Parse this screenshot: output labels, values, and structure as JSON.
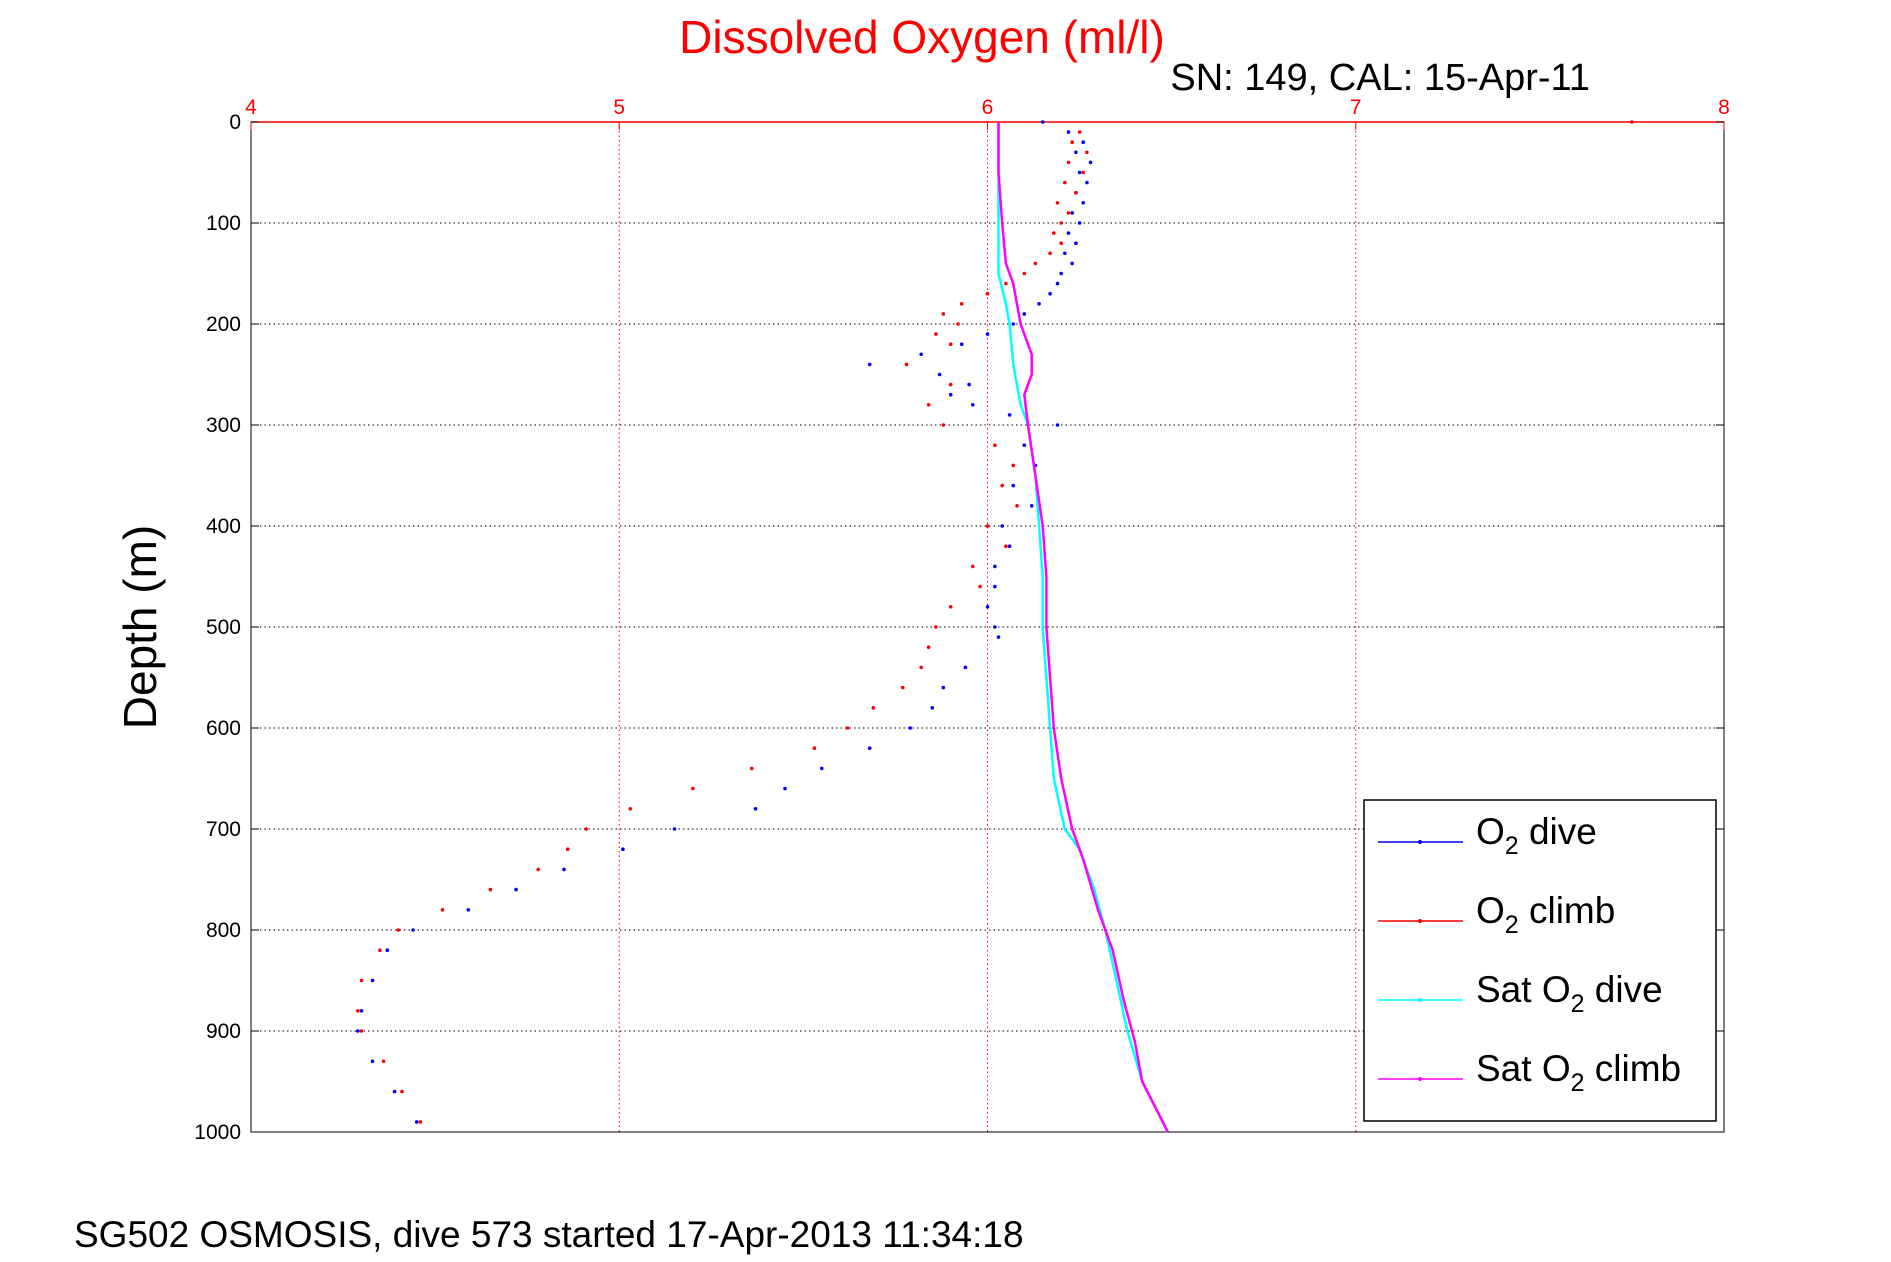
{
  "chart_data": {
    "type": "scatter",
    "title": "Dissolved Oxygen (ml/l)",
    "subtitle": "SN: 149, CAL: 15-Apr-11",
    "xlabel": "",
    "ylabel": "Depth (m)",
    "footer": "SG502 OSMOSIS, dive 573 started 17-Apr-2013 11:34:18",
    "xlim": [
      4,
      8
    ],
    "ylim": [
      0,
      1000
    ],
    "y_reversed": true,
    "x_axis_position": "top",
    "x_ticks": [
      "4",
      "5",
      "6",
      "7",
      "8"
    ],
    "y_ticks": [
      "0",
      "100",
      "200",
      "300",
      "400",
      "500",
      "600",
      "700",
      "800",
      "900",
      "1000"
    ],
    "grid": true,
    "legend_position": "bottom-right",
    "colors": {
      "title": "#ff0000",
      "x_axis": "#ff0000",
      "o2_dive": "#0000ff",
      "o2_climb": "#ff0000",
      "sat_dive": "#00ffff",
      "sat_climb": "#ff00ff"
    },
    "series": [
      {
        "name": "O2 dive",
        "label_parts": {
          "pre": "O",
          "sub": "2",
          "post": " dive"
        },
        "color": "#0000ff",
        "style": "dots",
        "points": [
          [
            6.15,
            0
          ],
          [
            6.22,
            10
          ],
          [
            6.26,
            20
          ],
          [
            6.24,
            30
          ],
          [
            6.28,
            40
          ],
          [
            6.25,
            50
          ],
          [
            6.27,
            60
          ],
          [
            6.24,
            70
          ],
          [
            6.26,
            80
          ],
          [
            6.23,
            90
          ],
          [
            6.25,
            100
          ],
          [
            6.22,
            110
          ],
          [
            6.24,
            120
          ],
          [
            6.21,
            130
          ],
          [
            6.23,
            140
          ],
          [
            6.2,
            150
          ],
          [
            6.19,
            160
          ],
          [
            6.17,
            170
          ],
          [
            6.14,
            180
          ],
          [
            6.1,
            190
          ],
          [
            6.07,
            200
          ],
          [
            6.0,
            210
          ],
          [
            5.93,
            220
          ],
          [
            5.82,
            230
          ],
          [
            5.68,
            240
          ],
          [
            5.87,
            250
          ],
          [
            5.95,
            260
          ],
          [
            5.9,
            270
          ],
          [
            5.96,
            280
          ],
          [
            6.06,
            290
          ],
          [
            6.19,
            300
          ],
          [
            6.1,
            320
          ],
          [
            6.13,
            340
          ],
          [
            6.07,
            360
          ],
          [
            6.12,
            380
          ],
          [
            6.04,
            400
          ],
          [
            6.06,
            420
          ],
          [
            6.02,
            440
          ],
          [
            6.02,
            460
          ],
          [
            6.0,
            480
          ],
          [
            6.02,
            500
          ],
          [
            6.03,
            510
          ],
          [
            5.94,
            540
          ],
          [
            5.88,
            560
          ],
          [
            5.85,
            580
          ],
          [
            5.79,
            600
          ],
          [
            5.68,
            620
          ],
          [
            5.55,
            640
          ],
          [
            5.45,
            660
          ],
          [
            5.37,
            680
          ],
          [
            5.15,
            700
          ],
          [
            5.01,
            720
          ],
          [
            4.85,
            740
          ],
          [
            4.72,
            760
          ],
          [
            4.59,
            780
          ],
          [
            4.44,
            800
          ],
          [
            4.37,
            820
          ],
          [
            4.33,
            850
          ],
          [
            4.3,
            880
          ],
          [
            4.29,
            900
          ],
          [
            4.33,
            930
          ],
          [
            4.39,
            960
          ],
          [
            4.45,
            990
          ]
        ]
      },
      {
        "name": "O2 climb",
        "label_parts": {
          "pre": "O",
          "sub": "2",
          "post": " climb"
        },
        "color": "#ff0000",
        "style": "dots",
        "points": [
          [
            7.75,
            0
          ],
          [
            6.25,
            10
          ],
          [
            6.23,
            20
          ],
          [
            6.27,
            30
          ],
          [
            6.22,
            40
          ],
          [
            6.26,
            50
          ],
          [
            6.21,
            60
          ],
          [
            6.24,
            70
          ],
          [
            6.19,
            80
          ],
          [
            6.22,
            90
          ],
          [
            6.2,
            100
          ],
          [
            6.18,
            110
          ],
          [
            6.2,
            120
          ],
          [
            6.17,
            130
          ],
          [
            6.13,
            140
          ],
          [
            6.1,
            150
          ],
          [
            6.05,
            160
          ],
          [
            6.0,
            170
          ],
          [
            5.93,
            180
          ],
          [
            5.88,
            190
          ],
          [
            5.92,
            200
          ],
          [
            5.86,
            210
          ],
          [
            5.9,
            220
          ],
          [
            5.78,
            240
          ],
          [
            5.9,
            260
          ],
          [
            5.84,
            280
          ],
          [
            5.88,
            300
          ],
          [
            6.02,
            320
          ],
          [
            6.07,
            340
          ],
          [
            6.04,
            360
          ],
          [
            6.08,
            380
          ],
          [
            6.0,
            400
          ],
          [
            6.05,
            420
          ],
          [
            5.96,
            440
          ],
          [
            5.98,
            460
          ],
          [
            5.9,
            480
          ],
          [
            5.86,
            500
          ],
          [
            5.84,
            520
          ],
          [
            5.82,
            540
          ],
          [
            5.77,
            560
          ],
          [
            5.69,
            580
          ],
          [
            5.62,
            600
          ],
          [
            5.53,
            620
          ],
          [
            5.36,
            640
          ],
          [
            5.2,
            660
          ],
          [
            5.03,
            680
          ],
          [
            4.91,
            700
          ],
          [
            4.86,
            720
          ],
          [
            4.78,
            740
          ],
          [
            4.65,
            760
          ],
          [
            4.52,
            780
          ],
          [
            4.4,
            800
          ],
          [
            4.35,
            820
          ],
          [
            4.3,
            850
          ],
          [
            4.29,
            880
          ],
          [
            4.3,
            900
          ],
          [
            4.36,
            930
          ],
          [
            4.41,
            960
          ],
          [
            4.46,
            990
          ]
        ]
      },
      {
        "name": "Sat O2 dive",
        "label_parts": {
          "pre": "Sat O",
          "sub": "2",
          "post": " dive"
        },
        "color": "#00ffff",
        "style": "line",
        "points": [
          [
            6.03,
            0
          ],
          [
            6.03,
            50
          ],
          [
            6.03,
            100
          ],
          [
            6.03,
            150
          ],
          [
            6.05,
            180
          ],
          [
            6.06,
            200
          ],
          [
            6.07,
            240
          ],
          [
            6.09,
            280
          ],
          [
            6.11,
            300
          ],
          [
            6.13,
            350
          ],
          [
            6.14,
            400
          ],
          [
            6.15,
            450
          ],
          [
            6.15,
            500
          ],
          [
            6.16,
            550
          ],
          [
            6.17,
            600
          ],
          [
            6.18,
            650
          ],
          [
            6.21,
            700
          ],
          [
            6.25,
            720
          ],
          [
            6.29,
            760
          ],
          [
            6.32,
            800
          ],
          [
            6.35,
            850
          ],
          [
            6.38,
            900
          ],
          [
            6.42,
            950
          ],
          [
            6.49,
            1000
          ]
        ]
      },
      {
        "name": "Sat O2 climb",
        "label_parts": {
          "pre": "Sat O",
          "sub": "2",
          "post": " climb"
        },
        "color": "#ff00ff",
        "style": "line",
        "points": [
          [
            6.03,
            0
          ],
          [
            6.03,
            50
          ],
          [
            6.04,
            100
          ],
          [
            6.05,
            140
          ],
          [
            6.07,
            160
          ],
          [
            6.09,
            200
          ],
          [
            6.12,
            230
          ],
          [
            6.12,
            250
          ],
          [
            6.1,
            270
          ],
          [
            6.11,
            300
          ],
          [
            6.13,
            350
          ],
          [
            6.15,
            400
          ],
          [
            6.16,
            450
          ],
          [
            6.16,
            500
          ],
          [
            6.17,
            550
          ],
          [
            6.18,
            600
          ],
          [
            6.2,
            650
          ],
          [
            6.23,
            700
          ],
          [
            6.26,
            730
          ],
          [
            6.3,
            780
          ],
          [
            6.34,
            820
          ],
          [
            6.37,
            870
          ],
          [
            6.4,
            910
          ],
          [
            6.42,
            950
          ],
          [
            6.49,
            1000
          ]
        ]
      }
    ]
  }
}
